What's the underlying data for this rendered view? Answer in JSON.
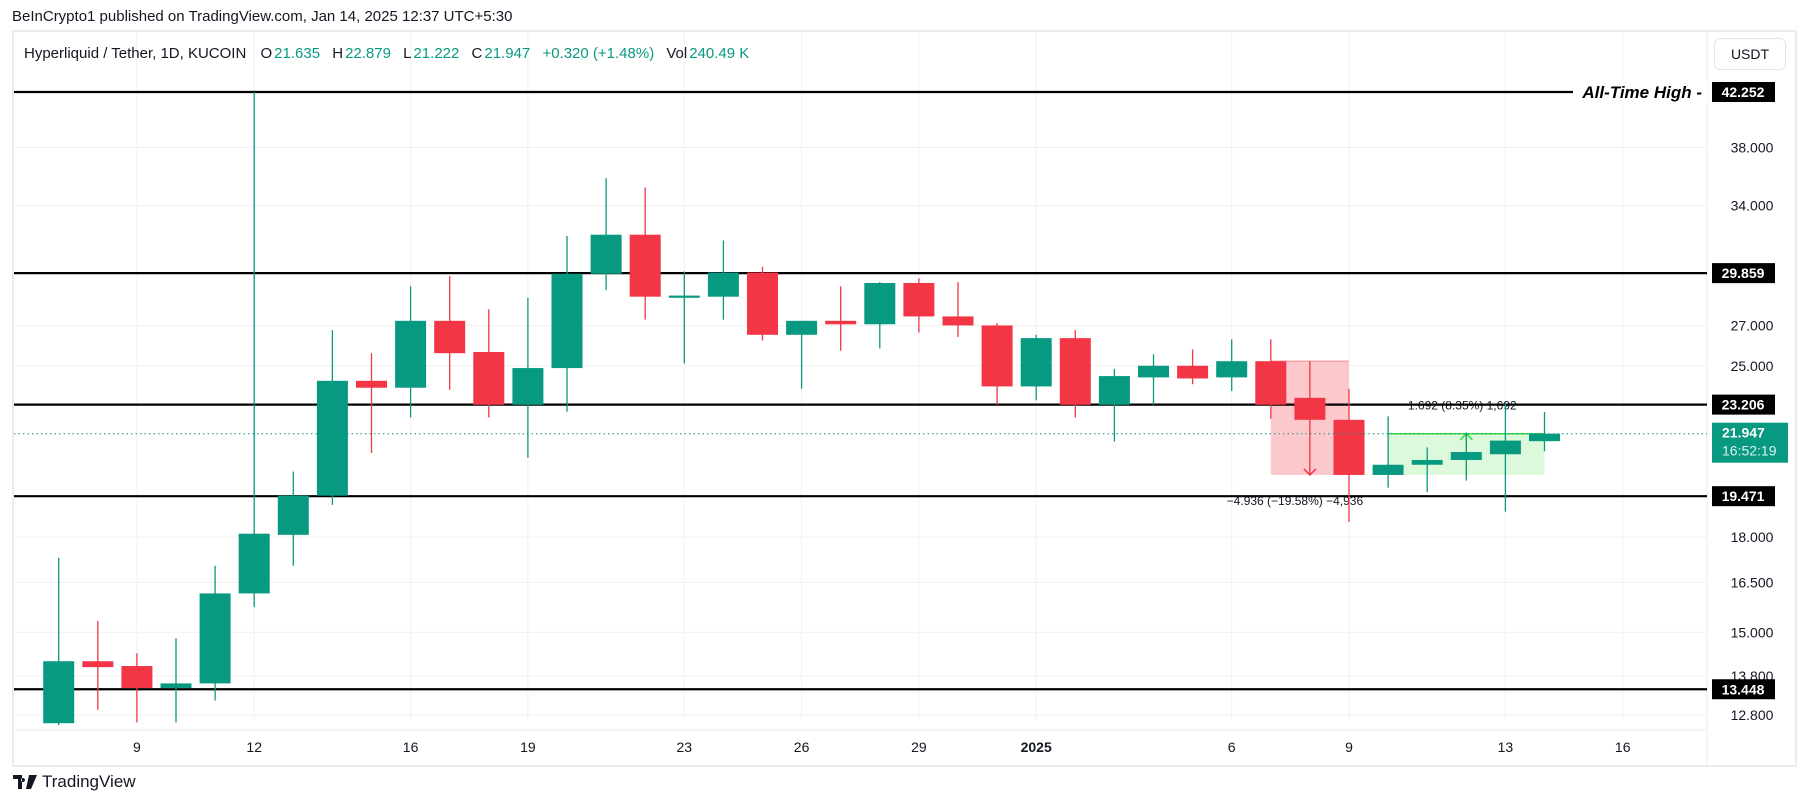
{
  "header": {
    "published": "BeInCrypto1 published on TradingView.com, Jan 14, 2025 12:37 UTC+5:30"
  },
  "legend": {
    "symbol": "Hyperliquid / Tether, 1D, KUCOIN",
    "o_label": "O",
    "o": "21.635",
    "h_label": "H",
    "h": "22.879",
    "l_label": "L",
    "l": "21.222",
    "c_label": "C",
    "c": "21.947",
    "change": "+0.320 (+1.48%)",
    "vol_label": "Vol",
    "vol": "240.49 K"
  },
  "currency_button": "USDT",
  "footer": {
    "brand": "TradingView"
  },
  "chart_data": {
    "type": "candlestick",
    "scale": "log",
    "ylim": [
      12.5,
      42.252
    ],
    "grid": true,
    "colors": {
      "up": "#089981",
      "down": "#F23645",
      "level": "#000000",
      "measure_down_fill": "#fcc8cc",
      "measure_up_fill": "#dcf9dc",
      "measure_up_line": "#33dd33"
    },
    "price_ticks": [
      "38.000",
      "34.000",
      "27.000",
      "25.000",
      "18.000",
      "16.500",
      "15.000",
      "13.800",
      "12.800"
    ],
    "x_ticks": [
      {
        "date": "2024-12-09",
        "label": "9"
      },
      {
        "date": "2024-12-12",
        "label": "12"
      },
      {
        "date": "2024-12-16",
        "label": "16"
      },
      {
        "date": "2024-12-19",
        "label": "19"
      },
      {
        "date": "2024-12-23",
        "label": "23"
      },
      {
        "date": "2024-12-26",
        "label": "26"
      },
      {
        "date": "2024-12-29",
        "label": "29"
      },
      {
        "date": "2025-01-01",
        "label": "2025",
        "bold": true
      },
      {
        "date": "2025-01-06",
        "label": "6"
      },
      {
        "date": "2025-01-09",
        "label": "9"
      },
      {
        "date": "2025-01-13",
        "label": "13"
      },
      {
        "date": "2025-01-16",
        "label": "16"
      }
    ],
    "levels": [
      {
        "price": 42.252,
        "label": "42.252",
        "annotation": "All-Time High"
      },
      {
        "price": 29.859,
        "label": "29.859"
      },
      {
        "price": 23.206,
        "label": "23.206"
      },
      {
        "price": 19.471,
        "label": "19.471"
      },
      {
        "price": 13.448,
        "label": "13.448"
      }
    ],
    "last_price": {
      "price": 21.947,
      "label": "21.947",
      "countdown": "16:52:19"
    },
    "measures": [
      {
        "from": "2025-01-07",
        "to": "2025-01-09",
        "top": 25.22,
        "bottom": 20.28,
        "direction": "down",
        "label": "−4.936 (−19.58%) −4,936"
      },
      {
        "from": "2025-01-10",
        "to": "2025-01-14",
        "top": 21.947,
        "bottom": 20.28,
        "direction": "up",
        "label": "1.692 (8.35%) 1,692"
      }
    ],
    "candles": [
      {
        "date": "2024-12-07",
        "o": 12.6,
        "h": 17.3,
        "l": 12.55,
        "c": 14.19
      },
      {
        "date": "2024-12-08",
        "o": 14.19,
        "h": 15.33,
        "l": 12.93,
        "c": 14.03
      },
      {
        "date": "2024-12-09",
        "o": 14.06,
        "h": 14.41,
        "l": 12.62,
        "c": 13.48
      },
      {
        "date": "2024-12-10",
        "o": 13.48,
        "h": 14.83,
        "l": 12.62,
        "c": 13.6
      },
      {
        "date": "2024-12-11",
        "o": 13.6,
        "h": 17.04,
        "l": 13.16,
        "c": 16.16
      },
      {
        "date": "2024-12-12",
        "o": 16.16,
        "h": 42.25,
        "l": 15.74,
        "c": 18.12
      },
      {
        "date": "2024-12-13",
        "o": 18.08,
        "h": 20.41,
        "l": 17.04,
        "c": 19.49
      },
      {
        "date": "2024-12-14",
        "o": 19.49,
        "h": 26.77,
        "l": 19.15,
        "c": 24.29
      },
      {
        "date": "2024-12-15",
        "o": 24.29,
        "h": 25.61,
        "l": 21.15,
        "c": 23.97
      },
      {
        "date": "2024-12-16",
        "o": 23.97,
        "h": 29.11,
        "l": 22.64,
        "c": 27.25
      },
      {
        "date": "2024-12-17",
        "o": 27.25,
        "h": 29.69,
        "l": 23.87,
        "c": 25.61
      },
      {
        "date": "2024-12-18",
        "o": 25.67,
        "h": 27.86,
        "l": 22.64,
        "c": 23.2
      },
      {
        "date": "2024-12-19",
        "o": 23.2,
        "h": 28.48,
        "l": 20.96,
        "c": 24.89
      },
      {
        "date": "2024-12-20",
        "o": 24.89,
        "h": 32.07,
        "l": 22.89,
        "c": 29.82
      },
      {
        "date": "2024-12-21",
        "o": 29.82,
        "h": 35.82,
        "l": 28.91,
        "c": 32.14
      },
      {
        "date": "2024-12-22",
        "o": 32.14,
        "h": 35.19,
        "l": 27.31,
        "c": 28.54
      },
      {
        "date": "2024-12-23",
        "o": 28.48,
        "h": 29.95,
        "l": 25.11,
        "c": 28.6
      },
      {
        "date": "2024-12-24",
        "o": 28.54,
        "h": 31.79,
        "l": 27.31,
        "c": 29.89
      },
      {
        "date": "2024-12-25",
        "o": 29.89,
        "h": 30.22,
        "l": 26.24,
        "c": 26.53
      },
      {
        "date": "2024-12-26",
        "o": 26.53,
        "h": 27.25,
        "l": 23.92,
        "c": 27.25
      },
      {
        "date": "2024-12-27",
        "o": 27.25,
        "h": 29.11,
        "l": 25.73,
        "c": 27.07
      },
      {
        "date": "2024-12-28",
        "o": 27.07,
        "h": 29.35,
        "l": 25.84,
        "c": 29.3
      },
      {
        "date": "2024-12-29",
        "o": 29.3,
        "h": 29.56,
        "l": 26.65,
        "c": 27.48
      },
      {
        "date": "2024-12-30",
        "o": 27.48,
        "h": 29.35,
        "l": 26.42,
        "c": 27.01
      },
      {
        "date": "2024-12-31",
        "o": 27.01,
        "h": 27.13,
        "l": 23.2,
        "c": 24.03
      },
      {
        "date": "2025-01-01",
        "o": 24.03,
        "h": 26.53,
        "l": 23.4,
        "c": 26.36
      },
      {
        "date": "2025-01-02",
        "o": 26.36,
        "h": 26.77,
        "l": 22.64,
        "c": 23.2
      },
      {
        "date": "2025-01-03",
        "o": 23.2,
        "h": 24.84,
        "l": 21.62,
        "c": 24.51
      },
      {
        "date": "2025-01-04",
        "o": 24.45,
        "h": 25.56,
        "l": 23.2,
        "c": 25.0
      },
      {
        "date": "2025-01-05",
        "o": 25.0,
        "h": 25.79,
        "l": 24.13,
        "c": 24.4
      },
      {
        "date": "2025-01-06",
        "o": 24.45,
        "h": 26.3,
        "l": 23.82,
        "c": 25.22
      },
      {
        "date": "2025-01-07",
        "o": 25.22,
        "h": 26.3,
        "l": 22.59,
        "c": 23.2
      },
      {
        "date": "2025-01-08",
        "o": 23.51,
        "h": 25.22,
        "l": 20.28,
        "c": 22.54
      },
      {
        "date": "2025-01-09",
        "o": 22.54,
        "h": 23.92,
        "l": 18.53,
        "c": 20.28
      },
      {
        "date": "2025-01-10",
        "o": 20.28,
        "h": 22.69,
        "l": 19.79,
        "c": 20.68
      },
      {
        "date": "2025-01-11",
        "o": 20.68,
        "h": 21.38,
        "l": 19.62,
        "c": 20.87
      },
      {
        "date": "2025-01-12",
        "o": 20.87,
        "h": 22.0,
        "l": 20.06,
        "c": 21.19
      },
      {
        "date": "2025-01-13",
        "o": 21.1,
        "h": 23.3,
        "l": 18.9,
        "c": 21.66
      },
      {
        "date": "2025-01-14",
        "o": 21.635,
        "h": 22.879,
        "l": 21.222,
        "c": 21.947
      }
    ]
  }
}
